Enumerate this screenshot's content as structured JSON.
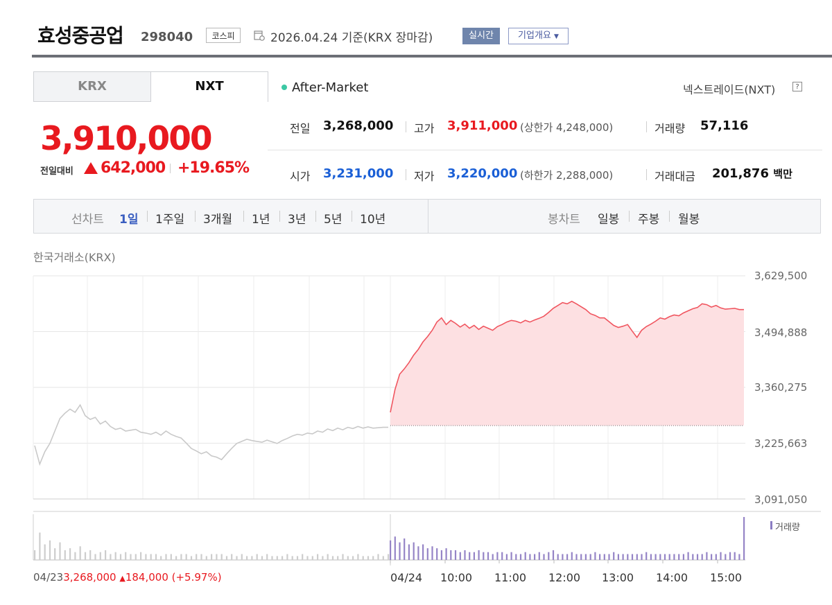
{
  "header": {
    "company_name": "효성중공업",
    "code": "298040",
    "market": "코스피",
    "date_text": "2026.04.24 기준(KRX 장마감)",
    "realtime_label": "실시간",
    "company_info_label": "기업개요"
  },
  "tabs": [
    {
      "label": "KRX",
      "active": false
    },
    {
      "label": "NXT",
      "active": true
    }
  ],
  "session": {
    "status_label": "After-Market",
    "exchange_link": "넥스트레이드(NXT)",
    "help_icon": "?"
  },
  "price": {
    "current": "3,910,000",
    "change_label": "전일대비",
    "change_amount": "642,000",
    "change_pct": "+19.65%",
    "direction": "up",
    "up_color": "#e8191f"
  },
  "summary": {
    "prev_close": {
      "label": "전일",
      "value": "3,268,000"
    },
    "high": {
      "label": "고가",
      "value": "3,911,000",
      "sub_label": "상한가",
      "sub_value": "4,248,000"
    },
    "volume": {
      "label": "거래량",
      "value": "57,116"
    },
    "open": {
      "label": "시가",
      "value": "3,231,000"
    },
    "low": {
      "label": "저가",
      "value": "3,220,000",
      "sub_label": "하한가",
      "sub_value": "2,288,000"
    },
    "amount": {
      "label": "거래대금",
      "value": "201,876",
      "unit": "백만"
    }
  },
  "period_bar": {
    "line_chart_label": "선차트",
    "line_periods": [
      "1일",
      "1주일",
      "3개월",
      "1년",
      "3년",
      "5년",
      "10년"
    ],
    "active_period": "1일",
    "candle_chart_label": "봉차트",
    "candle_periods": [
      "일봉",
      "주봉",
      "월봉"
    ]
  },
  "chart_data": {
    "type": "line",
    "source_label": "한국거래소(KRX)",
    "y_ticks": [
      "3,629,500",
      "3,494,888",
      "3,360,275",
      "3,225,663",
      "3,091,050"
    ],
    "y_tick_values": [
      3629500,
      3494888,
      3360275,
      3225663,
      3091050
    ],
    "ylim": [
      3091050,
      3629500
    ],
    "x_ticks": [
      "04/23",
      "04/24",
      "10:00",
      "11:00",
      "12:00",
      "13:00",
      "14:00",
      "15:00"
    ],
    "reference_value": 3268000,
    "volume_legend": "거래량",
    "prev_day": {
      "date": "04/23",
      "close": "3,268,000",
      "change": "184,000",
      "pct": "(+5.97%)",
      "color": "#e8191f"
    },
    "series": [
      {
        "session": "04/23",
        "color": "#c9c9c9",
        "values": [
          3220000,
          3175000,
          3205000,
          3225000,
          3255000,
          3285000,
          3298000,
          3308000,
          3300000,
          3318000,
          3292000,
          3283000,
          3288000,
          3272000,
          3279000,
          3266000,
          3259000,
          3262000,
          3255000,
          3257000,
          3259000,
          3252000,
          3250000,
          3247000,
          3252000,
          3245000,
          3255000,
          3247000,
          3242000,
          3238000,
          3226000,
          3213000,
          3207000,
          3200000,
          3205000,
          3195000,
          3192000,
          3186000,
          3200000,
          3213000,
          3225000,
          3230000,
          3235000,
          3232000,
          3230000,
          3228000,
          3233000,
          3229000,
          3225000,
          3232000,
          3237000,
          3243000,
          3247000,
          3245000,
          3250000,
          3248000,
          3255000,
          3252000,
          3260000,
          3256000,
          3262000,
          3258000,
          3264000,
          3261000,
          3266000,
          3262000,
          3265000,
          3262000,
          3263000,
          3264000,
          3264000
        ]
      },
      {
        "session": "04/24",
        "color": "#f0555f",
        "fill": "#fde0e2",
        "values": [
          3300000,
          3355000,
          3392000,
          3405000,
          3420000,
          3438000,
          3452000,
          3470000,
          3483000,
          3498000,
          3518000,
          3528000,
          3512000,
          3522000,
          3515000,
          3506000,
          3513000,
          3503000,
          3510000,
          3500000,
          3508000,
          3503000,
          3498000,
          3507000,
          3512000,
          3518000,
          3522000,
          3520000,
          3516000,
          3522000,
          3518000,
          3523000,
          3527000,
          3532000,
          3541000,
          3551000,
          3558000,
          3565000,
          3562000,
          3568000,
          3562000,
          3555000,
          3548000,
          3538000,
          3534000,
          3528000,
          3528000,
          3519000,
          3510000,
          3505000,
          3508000,
          3512000,
          3496000,
          3481000,
          3498000,
          3507000,
          3513000,
          3520000,
          3528000,
          3525000,
          3531000,
          3535000,
          3533000,
          3540000,
          3545000,
          3550000,
          3553000,
          3562000,
          3560000,
          3554000,
          3558000,
          3552000,
          3549000,
          3550000,
          3551000,
          3548000,
          3548000
        ]
      }
    ],
    "volume": [
      {
        "session": "04/23",
        "color": "#cdcdcd",
        "values": [
          5,
          14,
          8,
          10,
          6,
          9,
          5,
          6,
          4,
          7,
          4,
          5,
          3,
          4,
          5,
          3,
          4,
          3,
          4,
          3,
          3,
          4,
          3,
          3,
          3,
          2,
          3,
          3,
          2,
          3,
          3,
          2,
          3,
          3,
          2,
          3,
          3,
          3,
          2,
          3,
          2,
          3,
          2,
          2,
          3,
          2,
          3,
          2,
          2,
          2,
          3,
          2,
          2,
          3,
          2,
          2,
          3,
          2,
          3,
          2,
          2,
          3,
          2,
          2,
          3,
          2,
          2,
          2,
          3,
          2,
          3
        ]
      },
      {
        "session": "04/24",
        "color": "#9584c6",
        "values": [
          10,
          12,
          9,
          11,
          8,
          9,
          7,
          8,
          6,
          7,
          6,
          5,
          6,
          5,
          5,
          4,
          5,
          4,
          4,
          5,
          4,
          4,
          3,
          4,
          4,
          3,
          4,
          3,
          3,
          4,
          3,
          3,
          4,
          3,
          4,
          5,
          3,
          3,
          3,
          4,
          3,
          3,
          3,
          3,
          4,
          3,
          3,
          3,
          4,
          3,
          3,
          3,
          3,
          3,
          3,
          4,
          3,
          3,
          3,
          3,
          3,
          3,
          3,
          3,
          4,
          3,
          3,
          3,
          4,
          3,
          3,
          4,
          3,
          4,
          4,
          3,
          22
        ]
      }
    ]
  }
}
